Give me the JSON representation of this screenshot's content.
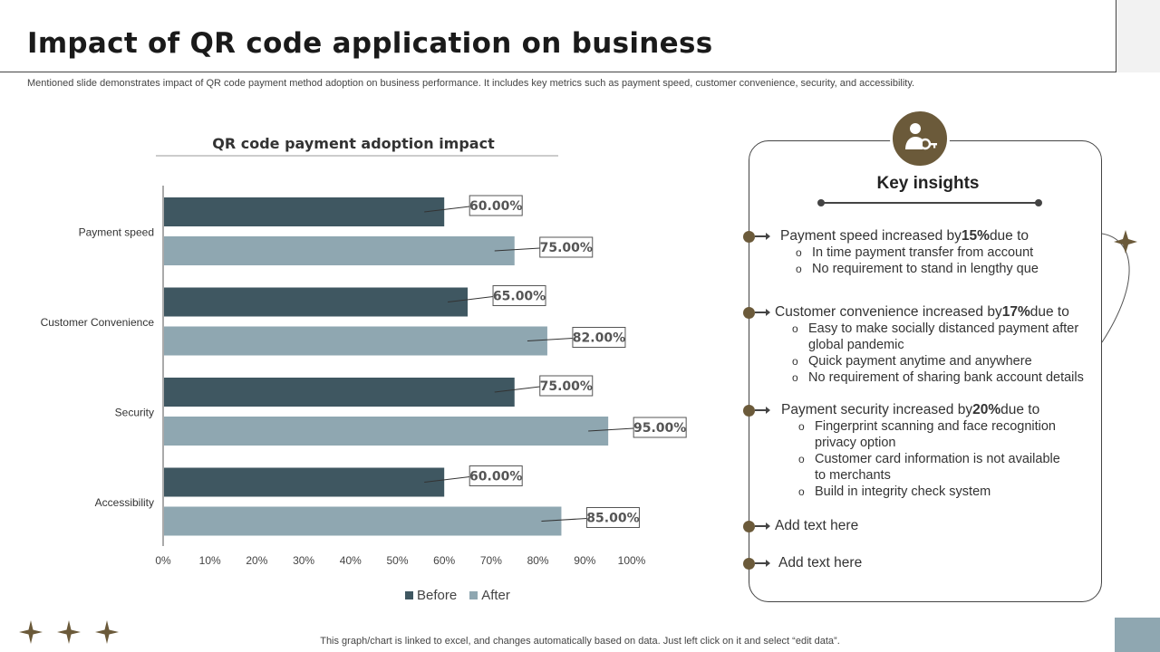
{
  "slide": {
    "title": "Impact of QR code application on business",
    "subtitle": "Mentioned slide demonstrates impact of QR code payment method adoption on business performance. It includes key metrics such as payment speed, customer convenience, security, and accessibility.",
    "footer": "This graph/chart is linked to excel, and changes automatically based on data. Just left click on it and select “edit data”."
  },
  "chart_data": {
    "type": "bar",
    "orientation": "horizontal",
    "title": "QR code payment adoption impact",
    "categories": [
      "Payment speed",
      "Customer Convenience",
      "Security",
      "Accessibility"
    ],
    "series": [
      {
        "name": "Before",
        "values": [
          60,
          65,
          75,
          60
        ],
        "labels": [
          "60.00%",
          "65.00%",
          "75.00%",
          "60.00%"
        ],
        "color": "#3f5761"
      },
      {
        "name": "After",
        "values": [
          75,
          82,
          95,
          85
        ],
        "labels": [
          "75.00%",
          "82.00%",
          "95.00%",
          "85.00%"
        ],
        "color": "#8fa7b1"
      }
    ],
    "xlim": [
      0,
      100
    ],
    "xticks": [
      "0%",
      "10%",
      "20%",
      "30%",
      "40%",
      "50%",
      "60%",
      "70%",
      "80%",
      "90%",
      "100%"
    ],
    "legend_position": "bottom",
    "grid": false
  },
  "insights": {
    "title": "Key insights",
    "icon": "user-key-icon",
    "accent": "#6b5a3a",
    "items": [
      {
        "pre": "Payment speed increased by ",
        "bold": "15%",
        "post": " due to",
        "subs": [
          "In time payment transfer from account",
          "No requirement to stand in lengthy que"
        ]
      },
      {
        "pre": "Customer convenience increased by ",
        "bold": "17%",
        "post": " due to",
        "subs": [
          "Easy to make socially distanced payment after global pandemic",
          "Quick payment anytime and anywhere",
          "No requirement of sharing bank account details"
        ]
      },
      {
        "pre": "Payment security increased by ",
        "bold": "20%",
        "post": " due to",
        "subs": [
          "Fingerprint scanning and face recognition privacy option",
          "Customer card information is not available to merchants",
          "Build in integrity check system"
        ]
      },
      {
        "pre": "Add text here",
        "bold": "",
        "post": "",
        "subs": []
      },
      {
        "pre": "Add text here",
        "bold": "",
        "post": "",
        "subs": []
      }
    ]
  }
}
